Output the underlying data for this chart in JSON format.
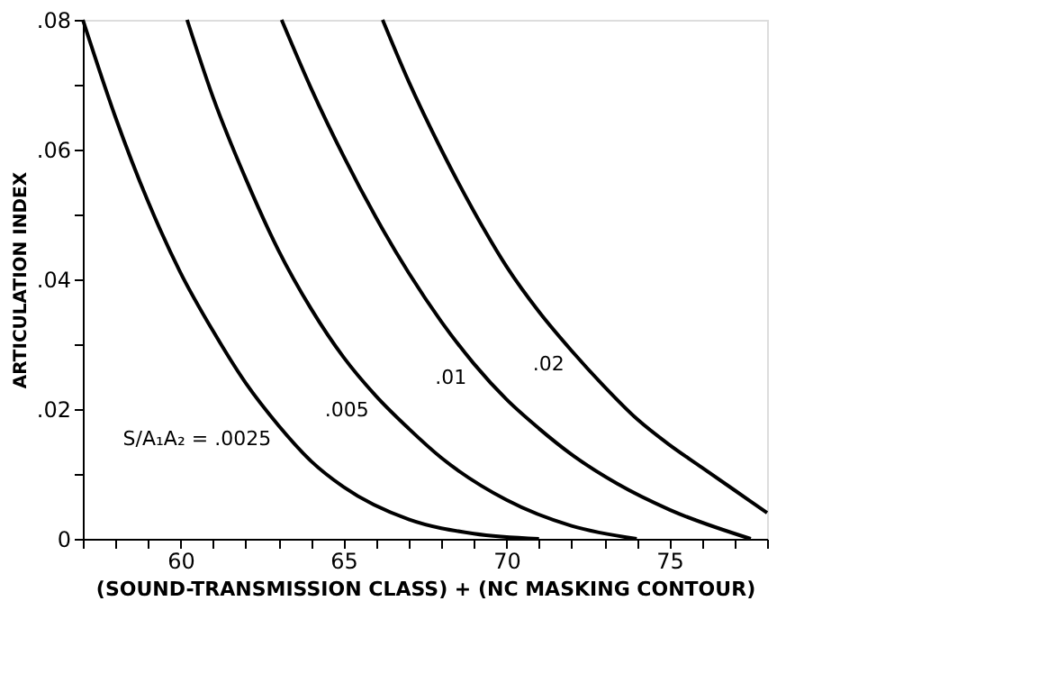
{
  "chart_data": {
    "type": "line",
    "xlabel": "(SOUND-TRANSMISSION CLASS) + (NC MASKING CONTOUR)",
    "ylabel": "ARTICULATION INDEX",
    "xlim": [
      57,
      78
    ],
    "ylim": [
      0,
      0.08
    ],
    "xticks": [
      {
        "value": 57,
        "label": null
      },
      {
        "value": 58,
        "label": null
      },
      {
        "value": 59,
        "label": null
      },
      60,
      {
        "value": 61,
        "label": null
      },
      {
        "value": 62,
        "label": null
      },
      {
        "value": 63,
        "label": null
      },
      {
        "value": 64,
        "label": null
      },
      65,
      {
        "value": 66,
        "label": null
      },
      {
        "value": 67,
        "label": null
      },
      {
        "value": 68,
        "label": null
      },
      {
        "value": 69,
        "label": null
      },
      70,
      {
        "value": 71,
        "label": null
      },
      {
        "value": 72,
        "label": null
      },
      {
        "value": 73,
        "label": null
      },
      {
        "value": 74,
        "label": null
      },
      75,
      {
        "value": 76,
        "label": null
      },
      {
        "value": 77,
        "label": null
      },
      {
        "value": 78,
        "label": null
      }
    ],
    "yticks": [
      0,
      {
        "value": 0.01,
        "label": null
      },
      {
        "value": 0.02,
        "label": ".02"
      },
      {
        "value": 0.03,
        "label": null
      },
      {
        "value": 0.04,
        "label": ".04"
      },
      {
        "value": 0.05,
        "label": null
      },
      {
        "value": 0.06,
        "label": ".06"
      },
      {
        "value": 0.07,
        "label": null
      },
      {
        "value": 0.08,
        "label": ".08"
      }
    ],
    "grid": false,
    "marker": "none",
    "line_style": "solid",
    "series": [
      {
        "name": "S/A₁A₂ = .0025",
        "color": "#000000",
        "x": [
          57,
          58,
          59,
          60,
          61,
          62,
          63,
          64,
          65,
          67,
          69,
          71
        ],
        "values": [
          0.08,
          0.065,
          0.052,
          0.041,
          0.032,
          0.024,
          0.0175,
          0.012,
          0.008,
          0.003,
          0.0008,
          0
        ]
      },
      {
        "name": ".005",
        "color": "#000000",
        "x": [
          60.2,
          61,
          62,
          63,
          64,
          65,
          66,
          67,
          68,
          70,
          72,
          74
        ],
        "values": [
          0.08,
          0.068,
          0.0555,
          0.0445,
          0.0355,
          0.028,
          0.022,
          0.017,
          0.0125,
          0.006,
          0.002,
          0
        ]
      },
      {
        "name": ".01",
        "color": "#000000",
        "x": [
          63.1,
          64,
          65,
          66,
          67,
          68,
          69,
          70,
          71,
          72,
          73.4,
          75,
          77.5
        ],
        "values": [
          0.08,
          0.0695,
          0.059,
          0.0495,
          0.041,
          0.0335,
          0.027,
          0.0215,
          0.017,
          0.013,
          0.0085,
          0.0045,
          0
        ]
      },
      {
        "name": ".02",
        "color": "#000000",
        "x": [
          66.2,
          67,
          68,
          69,
          70,
          71,
          72,
          73,
          74,
          75,
          76,
          77,
          78
        ],
        "values": [
          0.08,
          0.0705,
          0.06,
          0.0505,
          0.042,
          0.035,
          0.029,
          0.0235,
          0.0185,
          0.0145,
          0.011,
          0.0075,
          0.004
        ]
      }
    ]
  }
}
